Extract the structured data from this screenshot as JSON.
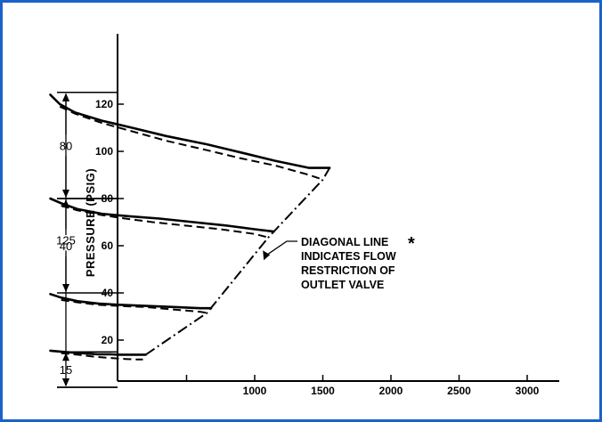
{
  "chart_data": {
    "type": "line",
    "title": "",
    "xlabel": "",
    "ylabel": "PRESSURE (PSIG)",
    "xlim": [
      -500,
      3250
    ],
    "ylim": [
      0,
      127
    ],
    "x_ticks": [
      {
        "value": 0,
        "label": ""
      },
      {
        "value": 500,
        "label": ""
      },
      {
        "value": 1000,
        "label": "1000"
      },
      {
        "value": 1500,
        "label": "1500"
      },
      {
        "value": 2000,
        "label": "2000"
      },
      {
        "value": 2500,
        "label": "2500"
      },
      {
        "value": 3000,
        "label": "3000"
      }
    ],
    "y_ticks": [
      {
        "value": 20,
        "label": "20"
      },
      {
        "value": 40,
        "label": "40"
      },
      {
        "value": 60,
        "label": "60"
      },
      {
        "value": 80,
        "label": "80"
      },
      {
        "value": 100,
        "label": "100"
      },
      {
        "value": 120,
        "label": "120"
      }
    ],
    "setting_ranges": [
      {
        "label": "125",
        "from": 0,
        "to": 125
      },
      {
        "label": "80",
        "from": 80,
        "to": 125
      },
      {
        "label": "40",
        "from": 40,
        "to": 80
      },
      {
        "label": "15",
        "from": 0,
        "to": 15
      }
    ],
    "series": [
      {
        "style": "solid",
        "x": [
          -500,
          -430,
          -320,
          -120,
          100,
          350,
          650,
          900,
          1150,
          1400,
          1550
        ],
        "y": [
          124,
          120,
          116.5,
          113,
          110,
          106.5,
          103,
          99.5,
          96,
          93,
          93
        ]
      },
      {
        "style": "dashed",
        "x": [
          -430,
          -320,
          -120,
          100,
          350,
          650,
          900,
          1150,
          1400,
          1500
        ],
        "y": [
          119,
          116,
          112,
          108.5,
          104.5,
          100.5,
          97,
          94,
          90,
          88
        ]
      },
      {
        "style": "solid",
        "x": [
          -500,
          -420,
          -300,
          -120,
          80,
          300,
          550,
          800,
          1000,
          1140
        ],
        "y": [
          80,
          78,
          75.5,
          73.5,
          72.5,
          71.5,
          70,
          68.5,
          67,
          66
        ]
      },
      {
        "style": "dashed",
        "x": [
          -420,
          -300,
          -120,
          50,
          250,
          500,
          750,
          1000,
          1100
        ],
        "y": [
          77,
          75,
          73,
          71.5,
          70,
          68.5,
          67,
          65,
          63.5
        ]
      },
      {
        "style": "solid",
        "x": [
          -500,
          -420,
          -300,
          -150,
          0,
          200,
          420,
          600,
          680
        ],
        "y": [
          39.5,
          38,
          36.5,
          35.5,
          35,
          34.5,
          34,
          33.5,
          33.5
        ]
      },
      {
        "style": "dashed",
        "x": [
          -420,
          -300,
          -150,
          0,
          200,
          400,
          600,
          650
        ],
        "y": [
          37,
          36,
          35,
          34.5,
          34,
          33,
          32,
          31.5
        ]
      },
      {
        "style": "solid",
        "x": [
          -500,
          -400,
          -280,
          -150,
          -60,
          0,
          120,
          200
        ],
        "y": [
          15.5,
          15,
          14.5,
          14,
          14,
          13.8,
          13.8,
          13.8
        ]
      },
      {
        "style": "dashed",
        "x": [
          -420,
          -300,
          -180,
          -100,
          0,
          50,
          120,
          180
        ],
        "y": [
          14.5,
          13.8,
          13,
          12.6,
          12.2,
          12,
          11.8,
          11.8
        ]
      },
      {
        "style": "dashdot",
        "name": "outlet valve flow restriction",
        "x": [
          200,
          650,
          1100,
          1500,
          1550
        ],
        "y": [
          13.8,
          31.5,
          63.5,
          88,
          93
        ]
      }
    ],
    "annotation": {
      "lines": [
        "DIAGONAL LINE",
        "INDICATES FLOW",
        "RESTRICTION OF",
        "OUTLET VALVE"
      ],
      "marker": "*",
      "points_to": {
        "x": 1060,
        "y": 58
      }
    }
  }
}
